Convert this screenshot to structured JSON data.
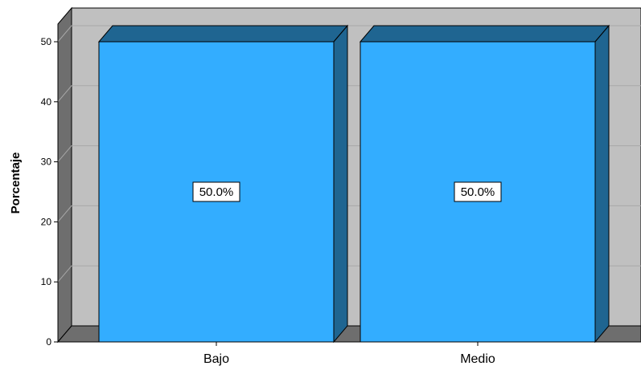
{
  "chart_data": {
    "type": "bar",
    "style": "3d",
    "categories": [
      "Bajo",
      "Medio"
    ],
    "values": [
      50.0,
      50.0
    ],
    "data_labels": [
      "50.0%",
      "50.0%"
    ],
    "title": "",
    "xlabel": "",
    "ylabel": "Porcentaje",
    "ylim": [
      0,
      50
    ],
    "yticks": [
      0,
      10,
      20,
      30,
      40,
      50
    ],
    "grid": true,
    "legend": "none",
    "colors": {
      "bar_front": "#33ADFF",
      "bar_side": "#1F6591",
      "bar_top": "#1F6591",
      "back_wall": "#C0C0C0",
      "left_wall": "#6E6E6E",
      "floor": "#6E6E6E",
      "gridline": "#A8A8A8"
    }
  }
}
